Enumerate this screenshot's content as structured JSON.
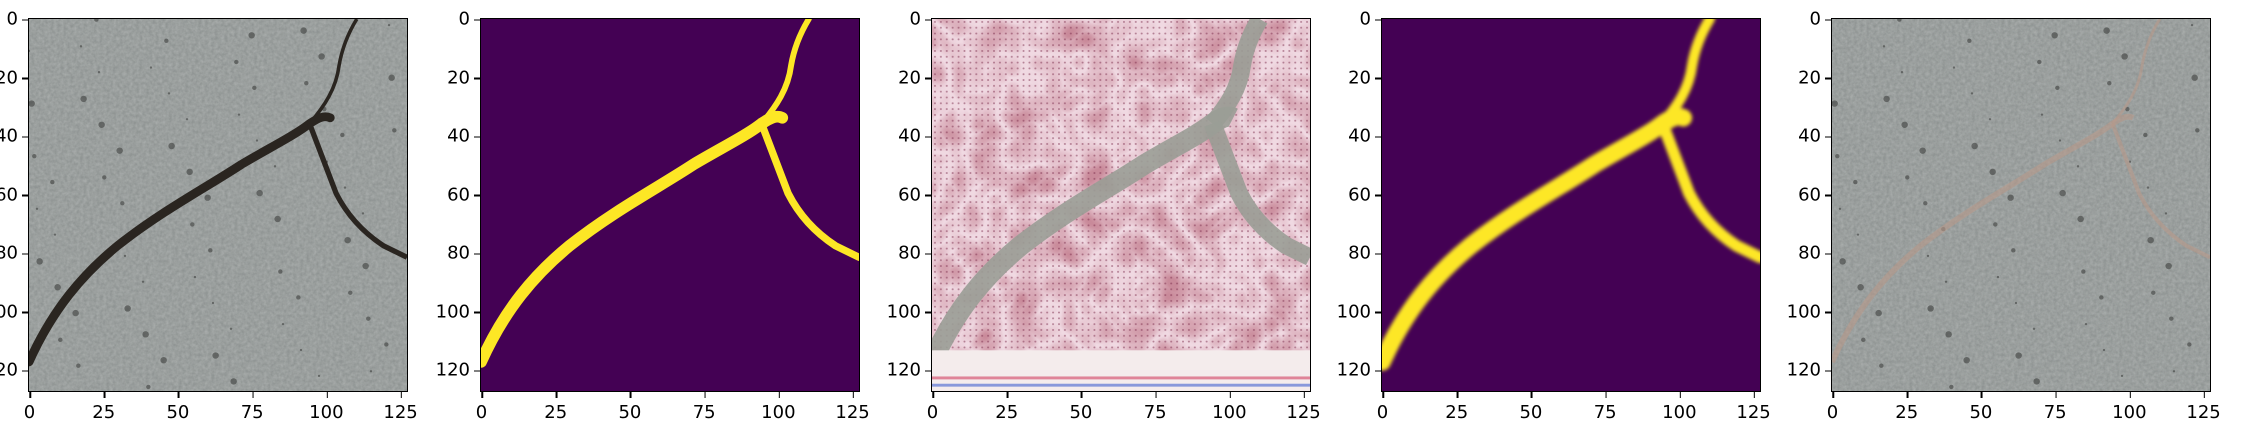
{
  "figure": {
    "panels": [
      {
        "name": "crack-photo",
        "kind": "photo"
      },
      {
        "name": "ground-truth-mask",
        "kind": "mask"
      },
      {
        "name": "artifact-image",
        "kind": "artifact"
      },
      {
        "name": "predicted-mask",
        "kind": "mask-soft"
      },
      {
        "name": "crack-photo-overlay",
        "kind": "photo-faint"
      }
    ],
    "y_ticks": [
      "0",
      "20",
      "40",
      "60",
      "80",
      "100",
      "120"
    ],
    "x_ticks": [
      "0",
      "25",
      "50",
      "75",
      "100",
      "125"
    ],
    "colors": {
      "mask_background": "#440154",
      "mask_foreground": "#fde725",
      "concrete": "#8f9493",
      "crack_dark": "#2a2520",
      "artifact_pink": "#c98a9a"
    }
  }
}
